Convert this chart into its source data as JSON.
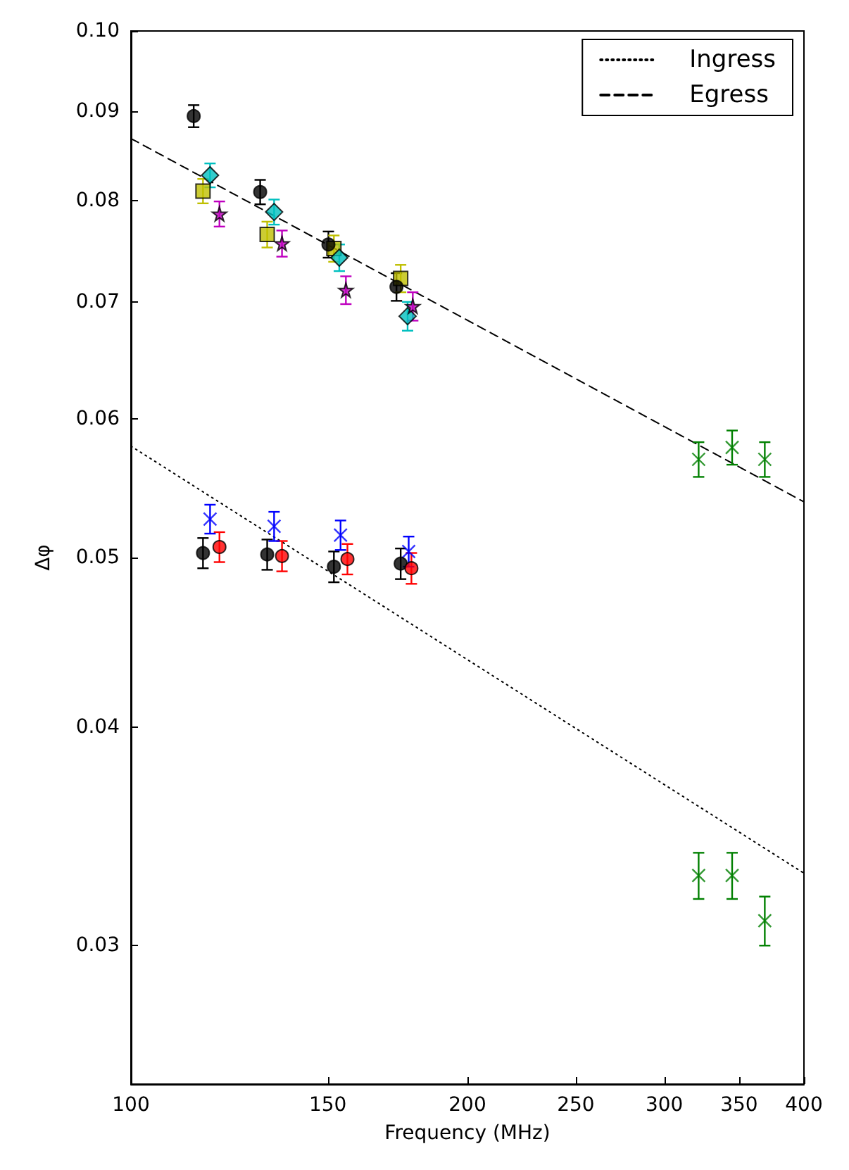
{
  "chart_data": {
    "type": "scatter",
    "xlabel": "Frequency (MHz)",
    "ylabel": "Δφ",
    "log": "xy",
    "grid": false,
    "legend": "top right",
    "xlim": [
      100,
      400
    ],
    "xticks": [
      100,
      150,
      200,
      250,
      300,
      350,
      400
    ],
    "ylim": [
      0.025,
      0.1
    ],
    "yticks": [
      0.03,
      0.04,
      0.05,
      0.06,
      0.07,
      0.08,
      0.09,
      {
        "value": 0.1,
        "label": "0.10"
      }
    ],
    "series": [
      {
        "type": "line",
        "name": "Ingress",
        "color": "#000000",
        "line_style": "dotted",
        "marker": "none",
        "x": [
          100,
          400
        ],
        "values": [
          0.0579,
          0.033
        ]
      },
      {
        "type": "line",
        "name": "Egress",
        "color": "#000000",
        "line_style": "dashed",
        "marker": "none",
        "x": [
          100,
          400
        ],
        "values": [
          0.0868,
          0.0538
        ]
      },
      {
        "color": "#000000",
        "marker": "circle",
        "x": [
          113.8,
          130.5,
          150.2,
          172.8
        ],
        "values": [
          0.0894,
          0.0809,
          0.0755,
          0.0714
        ],
        "errors": [
          0.0013,
          0.0013,
          0.0013,
          0.0013
        ]
      },
      {
        "color": "#bfbf00",
        "marker": "square",
        "x": [
          116,
          132.4,
          151.9,
          174.3
        ],
        "values": [
          0.081,
          0.0765,
          0.0751,
          0.0722
        ],
        "errors": [
          0.0013,
          0.0013,
          0.0013,
          0.0013
        ]
      },
      {
        "color": "#00bfbf",
        "marker": "diamond",
        "x": [
          117.7,
          134.3,
          153.6,
          176.8
        ],
        "values": [
          0.0827,
          0.0788,
          0.0742,
          0.0687
        ],
        "errors": [
          0.0013,
          0.0013,
          0.0013,
          0.0013
        ]
      },
      {
        "color": "#bf00bf",
        "marker": "star",
        "x": [
          120,
          136.5,
          155.7,
          178.7
        ],
        "values": [
          0.0786,
          0.0756,
          0.0711,
          0.0696
        ],
        "errors": [
          0.0013,
          0.0013,
          0.0013,
          0.0013
        ]
      },
      {
        "color": "#008000",
        "marker": "cross",
        "x": [
          322,
          345,
          369
        ],
        "values": [
          0.0569,
          0.0578,
          0.0569
        ],
        "errors": [
          0.0013,
          0.0013,
          0.0013
        ]
      },
      {
        "color": "#000000",
        "marker": "circle",
        "x": [
          116,
          132.4,
          151.9,
          174.3
        ],
        "values": [
          0.0503,
          0.0502,
          0.0494,
          0.0496
        ],
        "errors": [
          0.001,
          0.001,
          0.001,
          0.001
        ]
      },
      {
        "color": "#ff0000",
        "marker": "circle",
        "x": [
          120,
          136.5,
          156.2,
          178.2
        ],
        "values": [
          0.0507,
          0.0501,
          0.0499,
          0.0493
        ],
        "errors": [
          0.001,
          0.001,
          0.001,
          0.001
        ]
      },
      {
        "color": "#0000ff",
        "marker": "cross",
        "x": [
          117.7,
          134.3,
          154,
          177.2
        ],
        "values": [
          0.0526,
          0.0521,
          0.0515,
          0.0504
        ],
        "errors": [
          0.001,
          0.001,
          0.001,
          0.001
        ]
      },
      {
        "color": "#008000",
        "marker": "cross",
        "x": [
          322,
          345,
          369
        ],
        "values": [
          0.0329,
          0.0329,
          0.031
        ],
        "errors": [
          0.001,
          0.001,
          0.001
        ]
      }
    ]
  }
}
